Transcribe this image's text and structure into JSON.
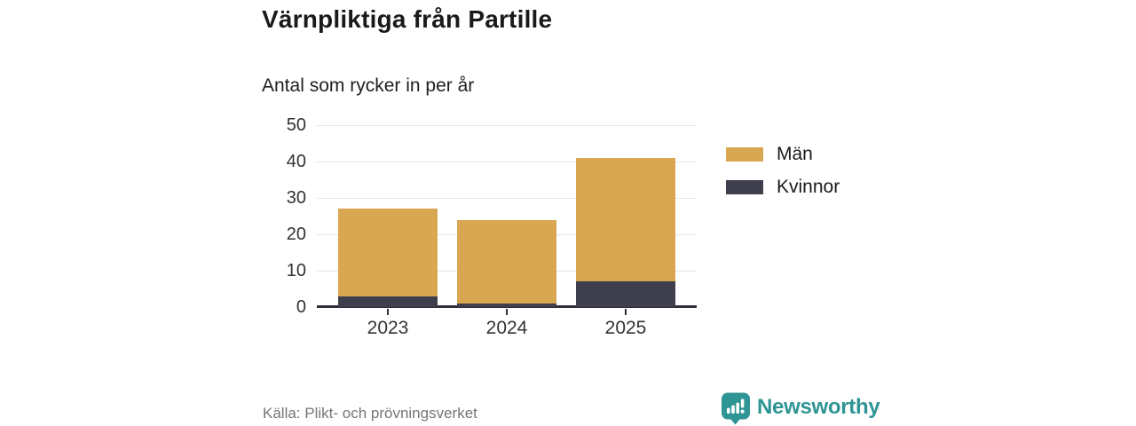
{
  "header": {
    "title": "Värnpliktiga från Partille",
    "subtitle": "Antal som rycker in per år"
  },
  "footer": {
    "source": "Källa: Plikt- och prövningsverket",
    "brand_name": "Newsworthy",
    "brand_icon": "newsworthy-bar-chart-bubble-icon",
    "brand_color": "#2f9494"
  },
  "colors": {
    "man": "#d9a752",
    "kvinnor": "#3e3e4d",
    "gridline": "#e6e6e6",
    "axis": "#2e2e3a",
    "tick_text": "#333333",
    "title_text": "#1a1a1a",
    "source_text": "#757575"
  },
  "chart_data": {
    "type": "bar",
    "stacked": true,
    "title": "Värnpliktiga från Partille",
    "subtitle": "Antal som rycker in per år",
    "categories": [
      "2023",
      "2024",
      "2025"
    ],
    "series": [
      {
        "name": "Kvinnor",
        "color": "#3e3e4d",
        "values": [
          3,
          1,
          7
        ]
      },
      {
        "name": "Män",
        "color": "#d9a752",
        "values": [
          24,
          23,
          34
        ]
      }
    ],
    "totals": [
      27,
      24,
      41
    ],
    "xlabel": "",
    "ylabel": "",
    "ylim": [
      0,
      50
    ],
    "yticks": [
      0,
      10,
      20,
      30,
      40,
      50
    ],
    "grid": "horizontal",
    "legend_position": "right",
    "legend_order": [
      "Män",
      "Kvinnor"
    ]
  }
}
